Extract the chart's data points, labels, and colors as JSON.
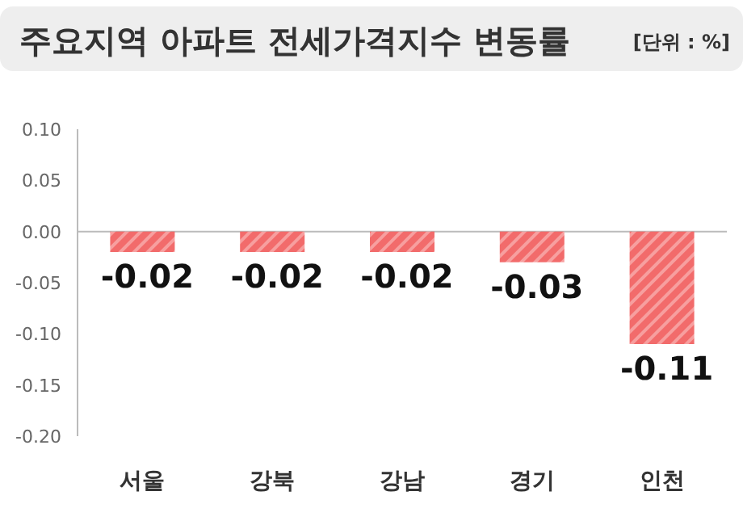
{
  "chart_data": {
    "type": "bar",
    "title": "주요지역 아파트 전세가격지수 변동률",
    "annotations": [
      "[단위 : %]"
    ],
    "categories": [
      "서울",
      "강북",
      "강남",
      "경기",
      "인천"
    ],
    "values": [
      -0.02,
      -0.02,
      -0.02,
      -0.03,
      -0.11
    ],
    "color": "#f26b6b",
    "data_labels": true,
    "ylim": [
      -0.2,
      0.1
    ],
    "yticks": [
      {
        "value": 0.1,
        "label": "0.10"
      },
      {
        "value": 0.05,
        "label": "0.05"
      },
      {
        "value": 0,
        "label": "0.00"
      },
      {
        "value": -0.05,
        "label": "-0.05"
      },
      {
        "value": -0.1,
        "label": "-0.10"
      },
      {
        "value": -0.15,
        "label": "-0.15"
      },
      {
        "value": -0.2,
        "label": "-0.20"
      }
    ]
  }
}
